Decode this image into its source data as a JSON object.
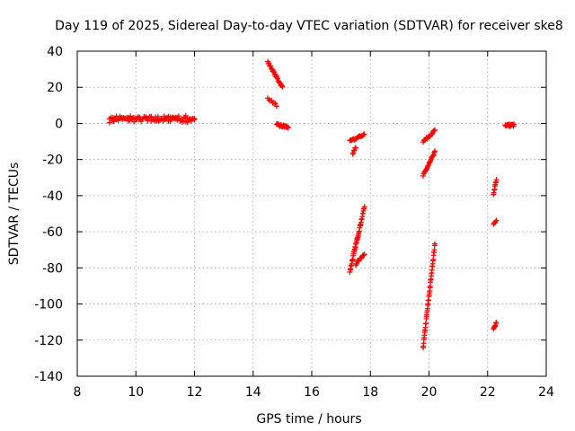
{
  "chart_data": {
    "type": "scatter",
    "title": "Day 119 of 2025, Sidereal Day-to-day VTEC variation (SDTVAR) for receiver ske8",
    "xlabel": "GPS time / hours",
    "ylabel": "SDTVAR / TECUs",
    "xlim": [
      8,
      24
    ],
    "ylim": [
      -140,
      40
    ],
    "xticks": [
      8,
      10,
      12,
      14,
      16,
      18,
      20,
      22,
      24
    ],
    "yticks": [
      40,
      20,
      0,
      -20,
      -40,
      -60,
      -80,
      -100,
      -120,
      -140
    ],
    "xtick_labels": [
      "8",
      "10",
      "12",
      "14",
      "16",
      "18",
      "20",
      "22",
      "24"
    ],
    "ytick_labels": [
      "40",
      "20",
      "0",
      "-20",
      "-40",
      "-60",
      "-80",
      "-100",
      "-120",
      "-140"
    ],
    "grid": true,
    "marker": "plus",
    "color": "#ff0000",
    "segments": [
      {
        "name": "arc-9-12a",
        "x": [
          9.1,
          12.0
        ],
        "y": [
          2,
          3
        ],
        "n": 60,
        "noise": 1.6
      },
      {
        "name": "arc-9-12b",
        "x": [
          9.1,
          12.0
        ],
        "y": [
          3,
          2
        ],
        "n": 50,
        "noise": 1.4
      },
      {
        "name": "arc-14-15-desc",
        "x": [
          14.5,
          15.0
        ],
        "y": [
          34,
          20
        ],
        "n": 26,
        "noise": 0.7
      },
      {
        "name": "arc-14-15-small",
        "x": [
          14.5,
          14.8
        ],
        "y": [
          14,
          10
        ],
        "n": 8,
        "noise": 0.5
      },
      {
        "name": "arc-15-flat",
        "x": [
          14.8,
          15.2
        ],
        "y": [
          -1,
          -2
        ],
        "n": 22,
        "noise": 0.8
      },
      {
        "name": "arc-17-18-a",
        "x": [
          17.3,
          17.8
        ],
        "y": [
          -10,
          -6
        ],
        "n": 18,
        "noise": 0.6
      },
      {
        "name": "arc-17-18-b",
        "x": [
          17.4,
          17.5
        ],
        "y": [
          -17,
          -13
        ],
        "n": 6,
        "noise": 0.6
      },
      {
        "name": "arc-17-18-long",
        "x": [
          17.3,
          17.8
        ],
        "y": [
          -82,
          -46
        ],
        "n": 40,
        "noise": 0.8
      },
      {
        "name": "arc-17-18-c",
        "x": [
          17.5,
          17.8
        ],
        "y": [
          -78,
          -72
        ],
        "n": 12,
        "noise": 0.6
      },
      {
        "name": "arc-20-a",
        "x": [
          19.8,
          20.2
        ],
        "y": [
          -10,
          -4
        ],
        "n": 16,
        "noise": 0.6
      },
      {
        "name": "arc-20-b",
        "x": [
          19.8,
          20.2
        ],
        "y": [
          -29,
          -16
        ],
        "n": 22,
        "noise": 0.7
      },
      {
        "name": "arc-20-long",
        "x": [
          19.8,
          20.2
        ],
        "y": [
          -124,
          -67
        ],
        "n": 46,
        "noise": 0.8
      },
      {
        "name": "arc-22-a",
        "x": [
          22.2,
          22.3
        ],
        "y": [
          -39,
          -31
        ],
        "n": 9,
        "noise": 0.5
      },
      {
        "name": "arc-22-b",
        "x": [
          22.2,
          22.3
        ],
        "y": [
          -56,
          -54
        ],
        "n": 5,
        "noise": 0.5
      },
      {
        "name": "arc-22-c",
        "x": [
          22.2,
          22.3
        ],
        "y": [
          -114,
          -110
        ],
        "n": 7,
        "noise": 0.5
      },
      {
        "name": "arc-22-23-flat",
        "x": [
          22.6,
          22.9
        ],
        "y": [
          -1,
          -1
        ],
        "n": 16,
        "noise": 0.7
      }
    ]
  }
}
